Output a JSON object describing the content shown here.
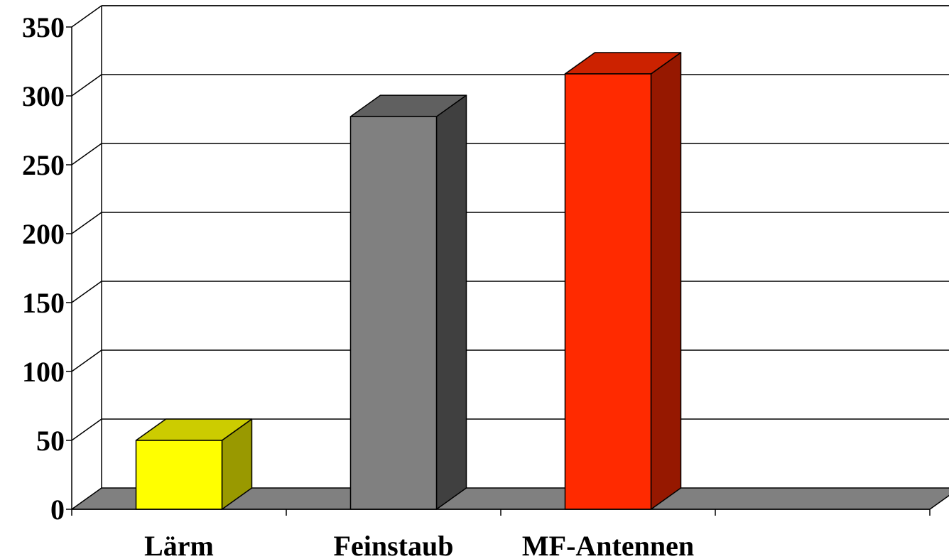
{
  "chart_data": {
    "type": "bar",
    "style": "3d-column",
    "categories": [
      "Lärm",
      "Feinstaub",
      "MF-Antennen",
      ""
    ],
    "values": [
      50,
      285,
      316,
      null
    ],
    "ylim": [
      0,
      350
    ],
    "yticks": [
      0,
      50,
      100,
      150,
      200,
      250,
      300,
      350
    ],
    "grid": true,
    "title": "",
    "xlabel": "",
    "ylabel": "",
    "colors": {
      "bars": [
        {
          "front": "#FFFF00",
          "top": "#CCCC00",
          "side": "#999900"
        },
        {
          "front": "#808080",
          "top": "#606060",
          "side": "#404040"
        },
        {
          "front": "#FF2A00",
          "top": "#CC2200",
          "side": "#961800"
        }
      ],
      "floor": "#808080",
      "background": "#FFFFFF"
    }
  }
}
